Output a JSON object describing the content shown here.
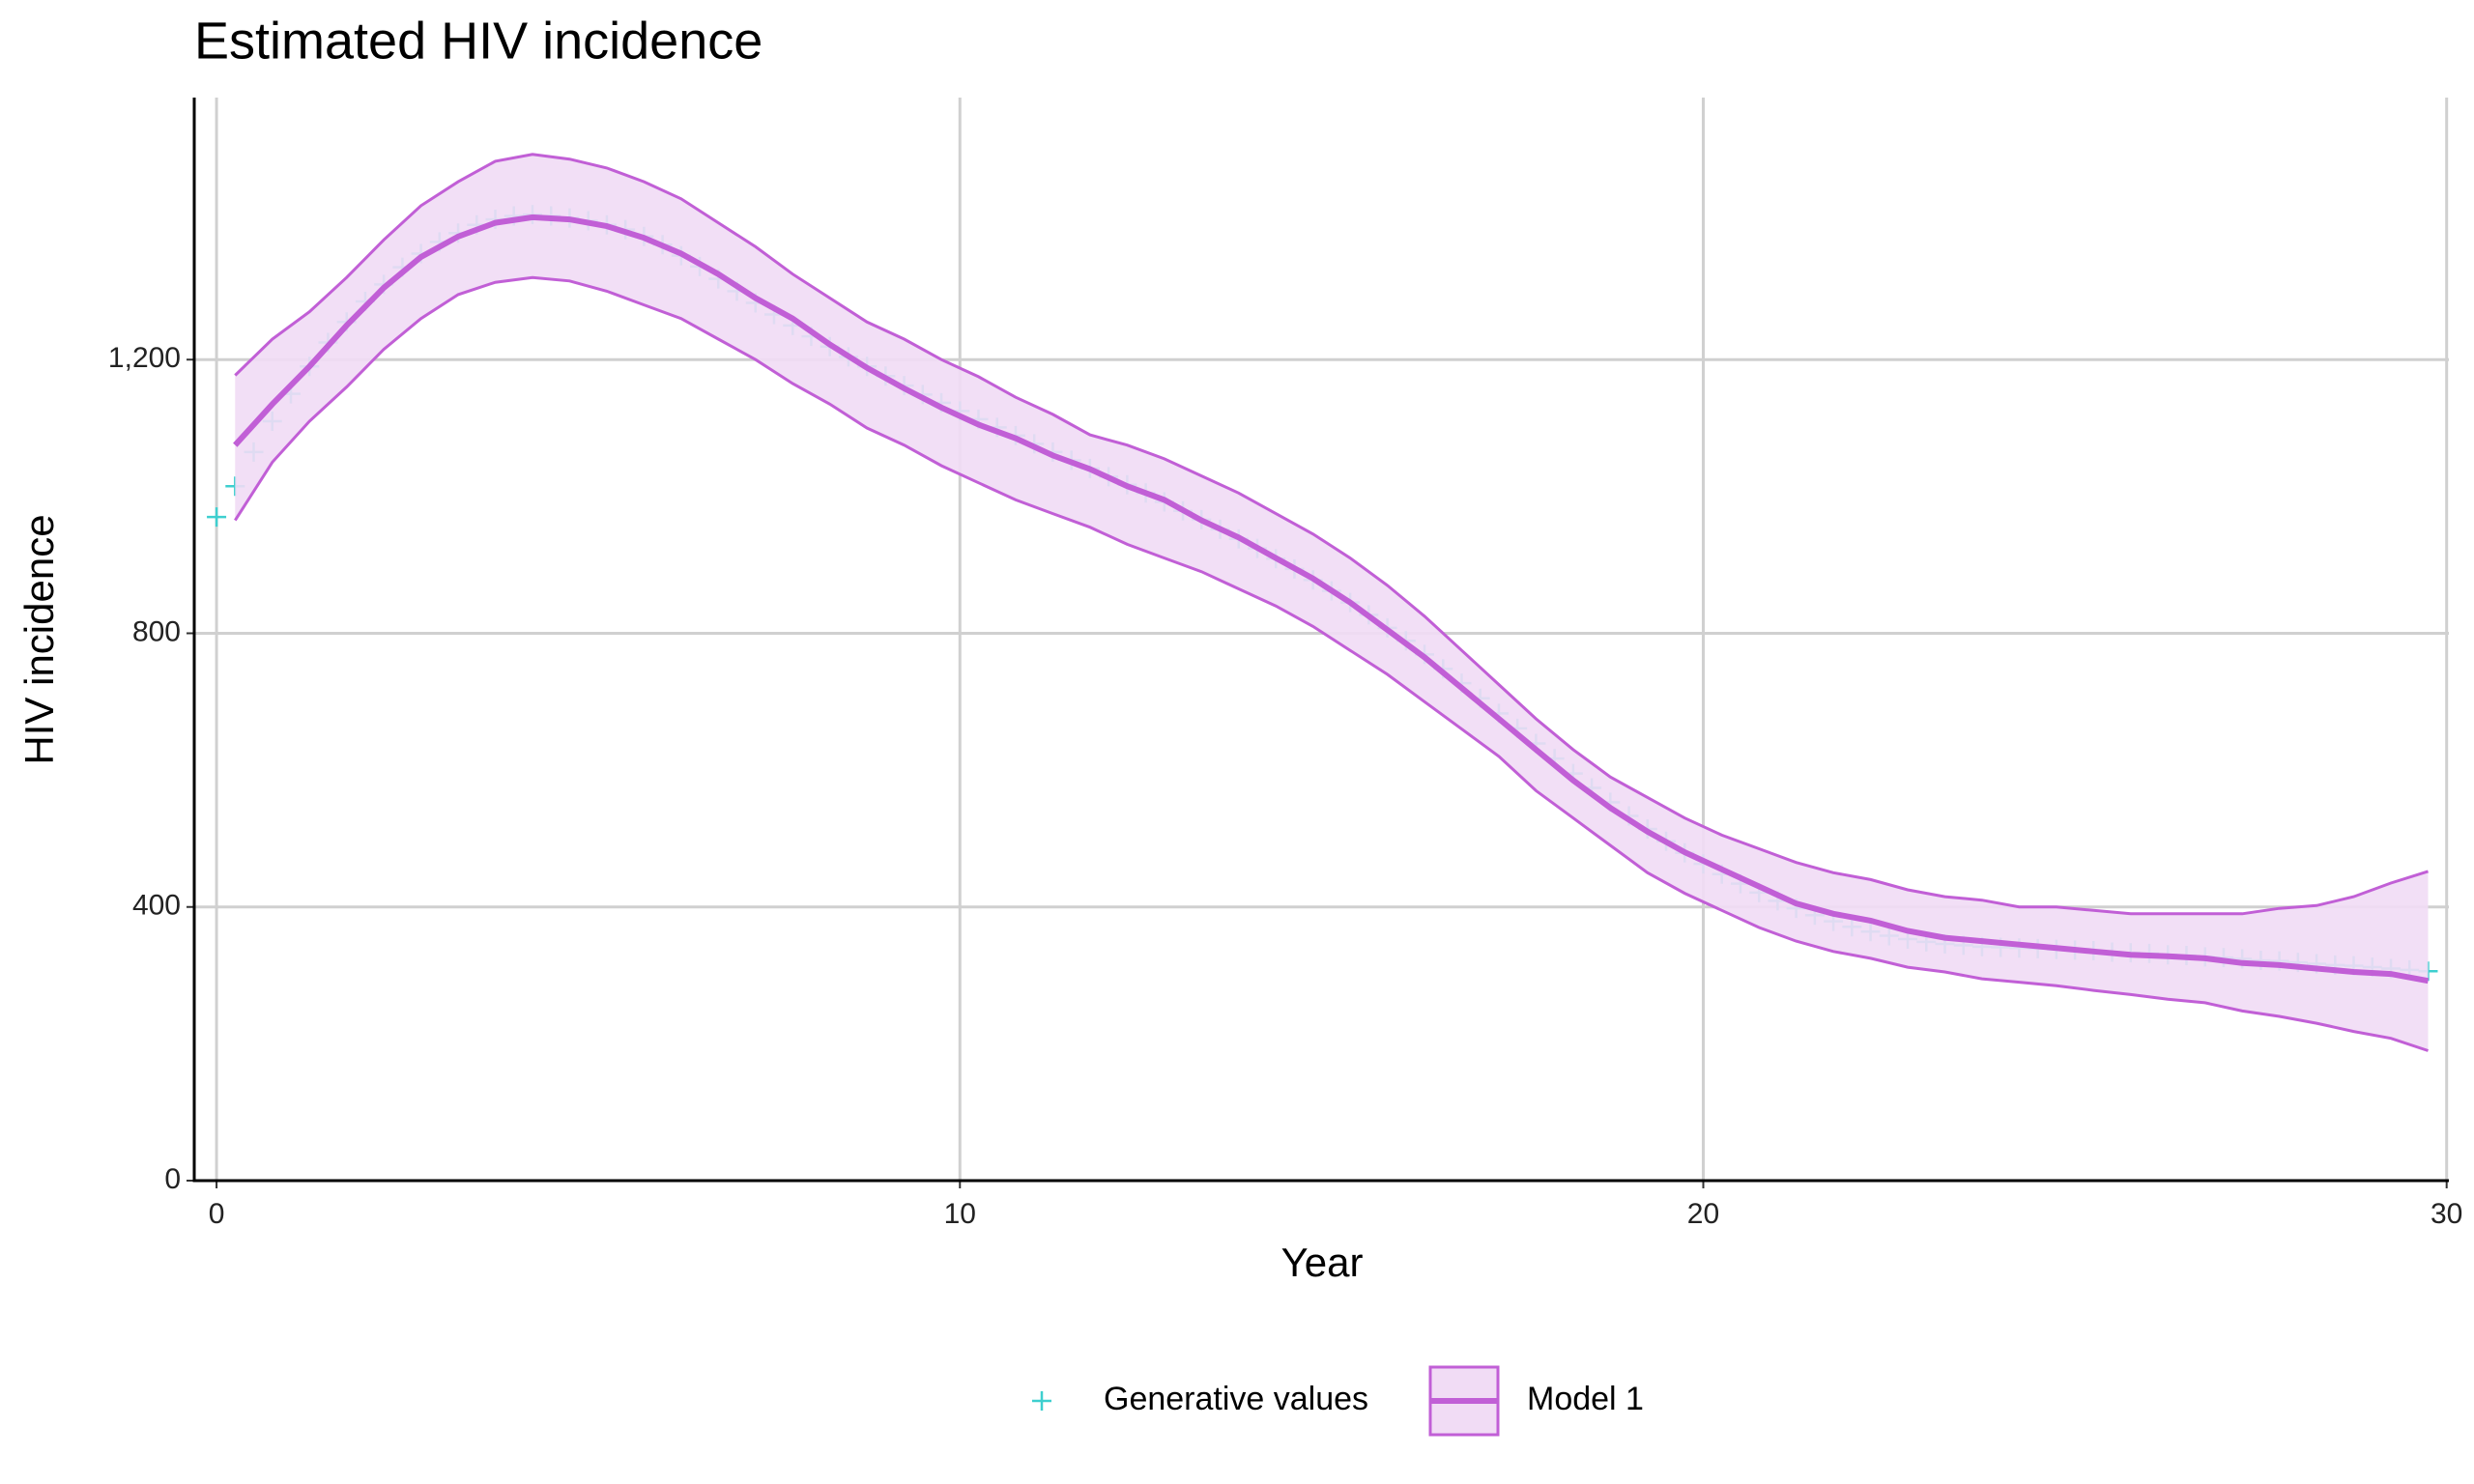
{
  "chart_data": {
    "type": "line",
    "title": "Estimated HIV incidence",
    "x_label": "Year",
    "y_label": "HIV incidence",
    "xlim": [
      -0.3,
      30.03
    ],
    "xticks": [
      0,
      10,
      20,
      30
    ],
    "ylim": [
      0,
      1583
    ],
    "yticks": [
      0,
      400,
      800,
      {
        "value": 1200,
        "label": "1,200"
      }
    ],
    "grid": true,
    "legend": "bottom",
    "series": [
      {
        "name": "Generative values",
        "color": "#3ecfcf",
        "marker": "+",
        "x": [
          0,
          0.25,
          0.5,
          0.75,
          1,
          1.25,
          1.5,
          1.75,
          2,
          2.25,
          2.5,
          2.75,
          3,
          3.25,
          3.5,
          3.75,
          4,
          4.25,
          4.5,
          4.75,
          5,
          5.25,
          5.5,
          5.75,
          6,
          6.25,
          6.5,
          6.75,
          7,
          7.25,
          7.5,
          7.75,
          8,
          8.25,
          8.5,
          8.75,
          9,
          9.25,
          9.5,
          9.75,
          10,
          10.25,
          10.5,
          10.75,
          11,
          11.25,
          11.5,
          11.75,
          12,
          12.25,
          12.5,
          12.75,
          13,
          13.25,
          13.5,
          13.75,
          14,
          14.25,
          14.5,
          14.75,
          15,
          15.25,
          15.5,
          15.75,
          16,
          16.25,
          16.5,
          16.75,
          17,
          17.25,
          17.5,
          17.75,
          18,
          18.25,
          18.5,
          18.75,
          19,
          19.25,
          19.5,
          19.75,
          20,
          20.25,
          20.5,
          20.75,
          21,
          21.25,
          21.5,
          21.75,
          22,
          22.25,
          22.5,
          22.75,
          23,
          23.25,
          23.5,
          23.75,
          24,
          24.25,
          24.5,
          24.75,
          25,
          25.25,
          25.5,
          25.75,
          26,
          26.25,
          26.5,
          26.75,
          27,
          27.25,
          27.5,
          27.75,
          28,
          28.25,
          28.5,
          28.75,
          29,
          29.25,
          29.5,
          29.75
        ],
        "values": [
          970,
          1015,
          1065,
          1110,
          1150,
          1190,
          1225,
          1255,
          1285,
          1310,
          1335,
          1355,
          1372,
          1385,
          1397,
          1405,
          1410,
          1412,
          1410,
          1407,
          1403,
          1397,
          1390,
          1380,
          1368,
          1352,
          1336,
          1318,
          1300,
          1283,
          1266,
          1250,
          1234,
          1219,
          1204,
          1190,
          1176,
          1162,
          1149,
          1137,
          1125,
          1113,
          1101,
          1089,
          1077,
          1065,
          1053,
          1041,
          1029,
          1017,
          1005,
          992,
          979,
          966,
          952,
          938,
          924,
          909,
          894,
          878,
          862,
          845,
          827,
          808,
          789,
          769,
          748,
          727,
          705,
          683,
          661,
          639,
          617,
          595,
          574,
          553,
          533,
          514,
          496,
          479,
          463,
          448,
          434,
          421,
          409,
          398,
          388,
          379,
          371,
          364,
          358,
          353,
          349,
          346,
          344,
          342,
          341,
          340,
          339,
          338,
          337,
          336,
          334,
          333,
          332,
          330,
          329,
          327,
          326,
          324,
          322,
          321,
          319,
          317,
          315,
          314,
          312,
          310,
          308,
          306
        ]
      },
      {
        "name": "Model 1",
        "color": "#c15fd6",
        "band_color": "#f1dcf5",
        "x": [
          0.25,
          0.75,
          1.25,
          1.75,
          2.25,
          2.75,
          3.25,
          3.75,
          4.25,
          4.75,
          5.25,
          5.75,
          6.25,
          6.75,
          7.25,
          7.75,
          8.25,
          8.75,
          9.25,
          9.75,
          10.25,
          10.75,
          11.25,
          11.75,
          12.25,
          12.75,
          13.25,
          13.75,
          14.25,
          14.75,
          15.25,
          15.75,
          16.25,
          16.75,
          17.25,
          17.75,
          18.25,
          18.75,
          19.25,
          19.75,
          20.25,
          20.75,
          21.25,
          21.75,
          22.25,
          22.75,
          23.25,
          23.75,
          24.25,
          24.75,
          25.25,
          25.75,
          26.25,
          26.75,
          27.25,
          27.75,
          28.25,
          28.75,
          29.25,
          29.75
        ],
        "values": [
          1075,
          1135,
          1190,
          1250,
          1305,
          1350,
          1380,
          1400,
          1408,
          1405,
          1395,
          1378,
          1355,
          1325,
          1290,
          1260,
          1222,
          1188,
          1158,
          1130,
          1105,
          1085,
          1060,
          1040,
          1015,
          995,
          965,
          940,
          910,
          880,
          845,
          805,
          765,
          720,
          675,
          630,
          585,
          545,
          510,
          480,
          455,
          430,
          405,
          390,
          380,
          365,
          355,
          350,
          345,
          340,
          335,
          330,
          328,
          325,
          318,
          315,
          310,
          305,
          302,
          292
        ],
        "upper": [
          1177,
          1230,
          1270,
          1320,
          1375,
          1425,
          1460,
          1490,
          1500,
          1493,
          1480,
          1460,
          1435,
          1400,
          1365,
          1325,
          1290,
          1255,
          1230,
          1200,
          1175,
          1145,
          1120,
          1090,
          1075,
          1055,
          1030,
          1005,
          975,
          945,
          910,
          870,
          825,
          775,
          725,
          675,
          630,
          590,
          560,
          530,
          505,
          485,
          465,
          450,
          440,
          425,
          415,
          410,
          400,
          400,
          395,
          390,
          390,
          390,
          390,
          398,
          402,
          415,
          435,
          452
        ],
        "lower": [
          965,
          1050,
          1110,
          1160,
          1215,
          1260,
          1295,
          1313,
          1320,
          1315,
          1300,
          1280,
          1260,
          1230,
          1200,
          1165,
          1135,
          1100,
          1075,
          1045,
          1020,
          995,
          975,
          955,
          930,
          910,
          890,
          865,
          840,
          810,
          775,
          740,
          700,
          660,
          620,
          570,
          530,
          490,
          450,
          420,
          395,
          370,
          350,
          335,
          325,
          312,
          305,
          295,
          290,
          285,
          278,
          272,
          265,
          260,
          248,
          240,
          230,
          218,
          208,
          190
        ]
      }
    ]
  }
}
